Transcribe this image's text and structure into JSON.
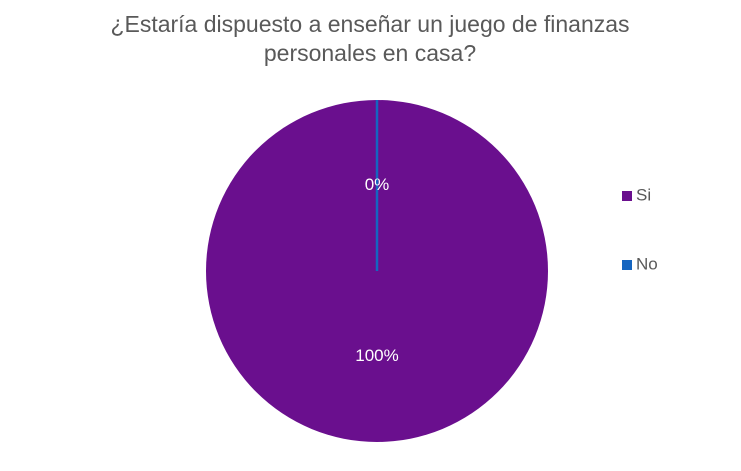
{
  "chart_data": {
    "type": "pie",
    "title": "¿Estaría dispuesto a enseñar un juego de finanzas personales en casa?",
    "categories": [
      "Si",
      "No"
    ],
    "values": [
      100,
      0
    ],
    "value_labels": [
      "100%",
      "0%"
    ],
    "colors": [
      "#6a0f8e",
      "#1565c0"
    ],
    "legend": "right"
  }
}
